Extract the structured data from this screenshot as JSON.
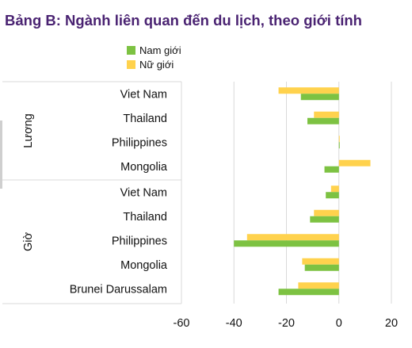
{
  "chart_data": {
    "type": "bar",
    "orientation": "horizontal",
    "title": "Bảng B: Ngành liên quan đến du lịch, theo giới tính",
    "xlabel": "",
    "ylabel": "",
    "xlim": [
      -60,
      20
    ],
    "xticks": [
      -60,
      -40,
      -20,
      0,
      20
    ],
    "legend": {
      "placement": "top-left"
    },
    "grid": true,
    "groups": [
      {
        "name": "Lương",
        "categories": [
          "Viet Nam",
          "Thailand",
          "Philippines",
          "Mongolia"
        ]
      },
      {
        "name": "Giờ",
        "categories": [
          "Viet Nam",
          "Thailand",
          "Philippines",
          "Mongolia",
          "Brunei Darussalam"
        ]
      }
    ],
    "series": [
      {
        "name": "Nam giới",
        "color": "#7dc242",
        "values": [
          [
            -14.5,
            -12,
            0.3,
            -5.5
          ],
          [
            -5,
            -11,
            -40,
            -13,
            -23
          ]
        ]
      },
      {
        "name": "Nữ giới",
        "color": "#ffd24d",
        "values": [
          [
            -23,
            -9.5,
            0.2,
            12
          ],
          [
            -3,
            -9.5,
            -35,
            -14,
            -15.5
          ]
        ]
      }
    ]
  }
}
